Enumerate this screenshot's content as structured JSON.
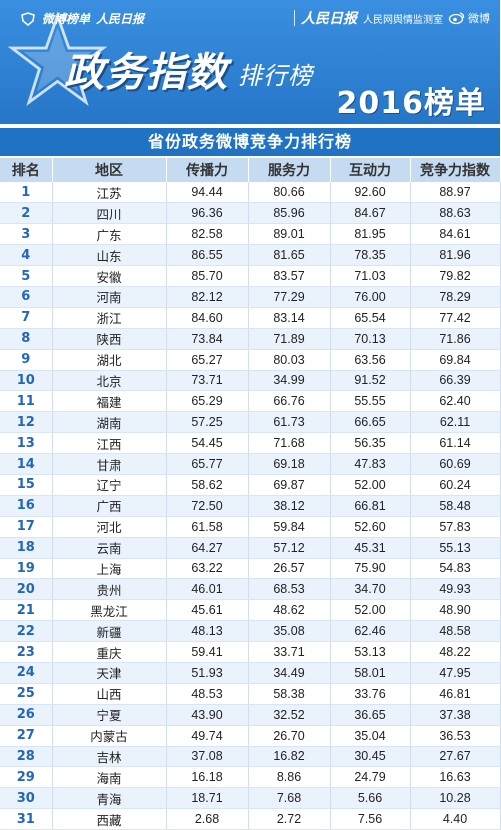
{
  "header": {
    "brand_left": "微博榜单",
    "brand_left_partner": "人民日报",
    "brand_right_logo": "人民日报",
    "brand_right_org": "人民网舆情监测室",
    "brand_right_weibo": "微博",
    "main_title": "政务指数",
    "sub_title": "排行榜",
    "year_title": "2016榜单"
  },
  "table": {
    "title": "省份政务微博竞争力排行榜",
    "columns": [
      "排名",
      "地区",
      "传播力",
      "服务力",
      "互动力",
      "竞争力指数"
    ],
    "rows": [
      [
        "1",
        "江苏",
        "94.44",
        "80.66",
        "92.60",
        "88.97"
      ],
      [
        "2",
        "四川",
        "96.36",
        "85.96",
        "84.67",
        "88.63"
      ],
      [
        "3",
        "广东",
        "82.58",
        "89.01",
        "81.95",
        "84.61"
      ],
      [
        "4",
        "山东",
        "86.55",
        "81.65",
        "78.35",
        "81.96"
      ],
      [
        "5",
        "安徽",
        "85.70",
        "83.57",
        "71.03",
        "79.82"
      ],
      [
        "6",
        "河南",
        "82.12",
        "77.29",
        "76.00",
        "78.29"
      ],
      [
        "7",
        "浙江",
        "84.60",
        "83.14",
        "65.54",
        "77.42"
      ],
      [
        "8",
        "陕西",
        "73.84",
        "71.89",
        "70.13",
        "71.86"
      ],
      [
        "9",
        "湖北",
        "65.27",
        "80.03",
        "63.56",
        "69.84"
      ],
      [
        "10",
        "北京",
        "73.71",
        "34.99",
        "91.52",
        "66.39"
      ],
      [
        "11",
        "福建",
        "65.29",
        "66.76",
        "55.55",
        "62.40"
      ],
      [
        "12",
        "湖南",
        "57.25",
        "61.73",
        "66.65",
        "62.11"
      ],
      [
        "13",
        "江西",
        "54.45",
        "71.68",
        "56.35",
        "61.14"
      ],
      [
        "14",
        "甘肃",
        "65.77",
        "69.18",
        "47.83",
        "60.69"
      ],
      [
        "15",
        "辽宁",
        "58.62",
        "69.87",
        "52.00",
        "60.24"
      ],
      [
        "16",
        "广西",
        "72.50",
        "38.12",
        "66.81",
        "58.48"
      ],
      [
        "17",
        "河北",
        "61.58",
        "59.84",
        "52.60",
        "57.83"
      ],
      [
        "18",
        "云南",
        "64.27",
        "57.12",
        "45.31",
        "55.13"
      ],
      [
        "19",
        "上海",
        "63.22",
        "26.57",
        "75.90",
        "54.83"
      ],
      [
        "20",
        "贵州",
        "46.01",
        "68.53",
        "34.70",
        "49.93"
      ],
      [
        "21",
        "黑龙江",
        "45.61",
        "48.62",
        "52.00",
        "48.90"
      ],
      [
        "22",
        "新疆",
        "48.13",
        "35.08",
        "62.46",
        "48.58"
      ],
      [
        "23",
        "重庆",
        "59.41",
        "33.71",
        "53.13",
        "48.22"
      ],
      [
        "24",
        "天津",
        "51.93",
        "34.49",
        "58.01",
        "47.95"
      ],
      [
        "25",
        "山西",
        "48.53",
        "58.38",
        "33.76",
        "46.81"
      ],
      [
        "26",
        "宁夏",
        "43.90",
        "32.52",
        "36.65",
        "37.38"
      ],
      [
        "27",
        "内蒙古",
        "49.74",
        "26.70",
        "35.04",
        "36.53"
      ],
      [
        "28",
        "吉林",
        "37.08",
        "16.82",
        "30.45",
        "27.67"
      ],
      [
        "29",
        "海南",
        "16.18",
        "8.86",
        "24.79",
        "16.63"
      ],
      [
        "30",
        "青海",
        "18.71",
        "7.68",
        "5.66",
        "10.28"
      ],
      [
        "31",
        "西藏",
        "2.68",
        "2.72",
        "7.56",
        "4.40"
      ]
    ]
  },
  "colors": {
    "header_bg": "#2b7fd0",
    "title_bar": "#1f72c4",
    "column_header_bg": "#c5dbf2",
    "rank_text": "#2466b7",
    "row_stripe": "#eaf2fb"
  },
  "icons": [
    "star-icon",
    "weibo-logo-icon",
    "weibo-eye-icon"
  ]
}
